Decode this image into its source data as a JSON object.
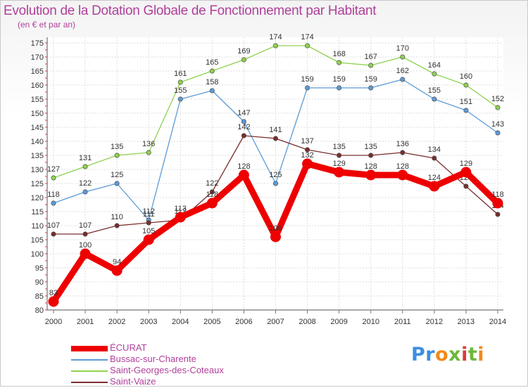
{
  "header": {
    "title": "Evolution de la Dotation Globale de Fonctionnement par Habitant",
    "subtitle": "(en € et par an)"
  },
  "logo": {
    "text": "Proxiti"
  },
  "colors": {
    "title": "#b0409a",
    "ecurat": "#ee0000",
    "bussac": "#5b9bd5",
    "saint_georges": "#8fd14f",
    "saint_vaize": "#7a2e2e",
    "grid": "#dddddd"
  },
  "chart_data": {
    "type": "line",
    "title": "Evolution de la Dotation Globale de Fonctionnement par Habitant",
    "subtitle": "(en € et par an)",
    "ylim": [
      80,
      175
    ],
    "yticks": [
      80,
      85,
      90,
      95,
      100,
      105,
      110,
      115,
      120,
      125,
      130,
      135,
      140,
      145,
      150,
      155,
      160,
      165,
      170,
      175
    ],
    "grid": true,
    "legend_position": "bottom-left",
    "x": [
      "2000",
      "2001",
      "2002",
      "2003",
      "2004",
      "2005",
      "2006",
      "2007",
      "2008",
      "2009",
      "2010",
      "2011",
      "2012",
      "2013",
      "2014"
    ],
    "series": [
      {
        "name": "Saint-Georges-des-Coteaux",
        "key": "saint_georges",
        "values": [
          127,
          131,
          135,
          136,
          161,
          165,
          169,
          174,
          174,
          168,
          167,
          170,
          164,
          160,
          152
        ]
      },
      {
        "name": "Bussac-sur-Charente",
        "key": "bussac",
        "values": [
          118,
          122,
          125,
          112,
          155,
          158,
          147,
          125,
          159,
          159,
          159,
          162,
          155,
          151,
          143
        ]
      },
      {
        "name": "Saint-Vaize",
        "key": "saint_vaize",
        "values": [
          107,
          107,
          110,
          111,
          112,
          122,
          142,
          141,
          137,
          135,
          135,
          136,
          134,
          124,
          114
        ]
      },
      {
        "name": "ÉCURAT",
        "key": "ecurat",
        "values": [
          83,
          100,
          94,
          105,
          113,
          118,
          128,
          106,
          132,
          129,
          128,
          128,
          124,
          129,
          118
        ]
      }
    ],
    "legend": [
      "ÉCURAT",
      "Bussac-sur-Charente",
      "Saint-Georges-des-Coteaux",
      "Saint-Vaize"
    ]
  }
}
